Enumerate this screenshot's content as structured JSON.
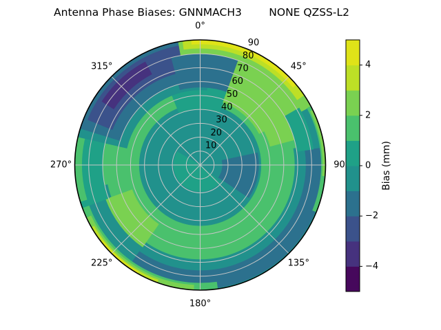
{
  "title": "Antenna Phase Biases: GNNMACH3        NONE QZSS-L2",
  "colorbar": {
    "label": "Bias (mm)",
    "vmin": -5,
    "vmax": 5,
    "ticks": [
      {
        "value": 4,
        "label": "4"
      },
      {
        "value": 2,
        "label": "2"
      },
      {
        "value": 0,
        "label": "0"
      },
      {
        "value": -2,
        "label": "−2"
      },
      {
        "value": -4,
        "label": "−4"
      }
    ],
    "band_colors_bottom_to_top": [
      "#46085c",
      "#46327e",
      "#3b528b",
      "#2c718e",
      "#21918c",
      "#1fa187",
      "#4ac16d",
      "#7ad151",
      "#bddf26",
      "#dfe318"
    ]
  },
  "polar_axes": {
    "angle_tick_labels": [
      {
        "angle_deg": 0,
        "label": "0°"
      },
      {
        "angle_deg": 45,
        "label": "45°"
      },
      {
        "angle_deg": 90,
        "label": "90"
      },
      {
        "angle_deg": 135,
        "label": "135°"
      },
      {
        "angle_deg": 180,
        "label": "180°"
      },
      {
        "angle_deg": 225,
        "label": "225°"
      },
      {
        "angle_deg": 270,
        "label": "270°"
      },
      {
        "angle_deg": 315,
        "label": "315°"
      }
    ],
    "radial_tick_labels": [
      "10",
      "20",
      "30",
      "40",
      "50",
      "60",
      "70",
      "80",
      "90"
    ],
    "radial_label_angle_deg": 22.5,
    "radial_grid_interval": 10,
    "angle_grid_interval_deg": 45,
    "r_max": 90
  },
  "chart_data": {
    "type": "heatmap",
    "projection": "polar",
    "title": "Antenna Phase Biases: GNNMACH3        NONE QZSS-L2",
    "colorbar_label": "Bias (mm)",
    "value_range": [
      -5,
      5
    ],
    "contour_interval": 1,
    "legend_position": "right-colorbar",
    "bands": {
      "m5": {
        "range": [
          -5,
          -4
        ],
        "color": "#46085c"
      },
      "m4": {
        "range": [
          -4,
          -3
        ],
        "color": "#46327e"
      },
      "m3": {
        "range": [
          -3,
          -2
        ],
        "color": "#3b528b"
      },
      "m2": {
        "range": [
          -2,
          -1
        ],
        "color": "#2c718e"
      },
      "m1": {
        "range": [
          -1,
          0
        ],
        "color": "#21918c"
      },
      "p1": {
        "range": [
          0,
          1
        ],
        "color": "#1fa187"
      },
      "p2": {
        "range": [
          1,
          2
        ],
        "color": "#4ac16d"
      },
      "p3": {
        "range": [
          2,
          3
        ],
        "color": "#7ad151"
      },
      "p4": {
        "range": [
          3,
          4
        ],
        "color": "#bddf26"
      },
      "p5": {
        "range": [
          4,
          5
        ],
        "color": "#dfe318"
      }
    },
    "sectors_note": "Approximate filled-contour regions: [azimuth_start_deg, azimuth_end_deg, r_inner, r_outer, band]; azimuth clockwise from North (0 deg at top), radius in elevation units 0-90.",
    "sectors": [
      [
        0,
        180,
        0,
        90,
        "m1"
      ],
      [
        180,
        360,
        0,
        90,
        "m1"
      ],
      [
        0,
        180,
        44,
        74,
        "p2"
      ],
      [
        180,
        360,
        44,
        74,
        "p2"
      ],
      [
        338,
        380,
        40,
        60,
        "p1"
      ],
      [
        80,
        258,
        68,
        90,
        "m1"
      ],
      [
        82,
        215,
        76,
        89,
        "m2"
      ],
      [
        172,
        250,
        85,
        90,
        "p2"
      ],
      [
        183,
        245,
        86.5,
        90,
        "p3"
      ],
      [
        200,
        240,
        88,
        90,
        "p4"
      ],
      [
        210,
        232,
        88.8,
        90,
        "p5"
      ],
      [
        215,
        250,
        52,
        72,
        "p3"
      ],
      [
        250,
        292,
        70,
        90,
        "p1"
      ],
      [
        253,
        288,
        85,
        90,
        "p2"
      ],
      [
        283,
        365,
        54,
        90,
        "m1"
      ],
      [
        287,
        358,
        60,
        90,
        "m2"
      ],
      [
        292,
        350,
        68,
        87,
        "m3"
      ],
      [
        303,
        332,
        74,
        84,
        "m4"
      ],
      [
        350,
        422,
        70,
        90,
        "p2"
      ],
      [
        345,
        380,
        56,
        80,
        "m2"
      ],
      [
        20,
        62,
        48,
        86,
        "p3"
      ],
      [
        55,
        75,
        52,
        74,
        "p3"
      ],
      [
        350,
        422,
        80,
        90,
        "p3"
      ],
      [
        352,
        416,
        84,
        90,
        "p4"
      ],
      [
        356,
        410,
        87,
        90,
        "p5"
      ],
      [
        60,
        82,
        70,
        82,
        "p1"
      ],
      [
        62,
        112,
        87,
        90,
        "p2"
      ],
      [
        64,
        95,
        88,
        90,
        "p3"
      ],
      [
        78,
        124,
        16,
        42,
        "m2"
      ],
      [
        130,
        300,
        0.5,
        19,
        "p1"
      ]
    ]
  }
}
